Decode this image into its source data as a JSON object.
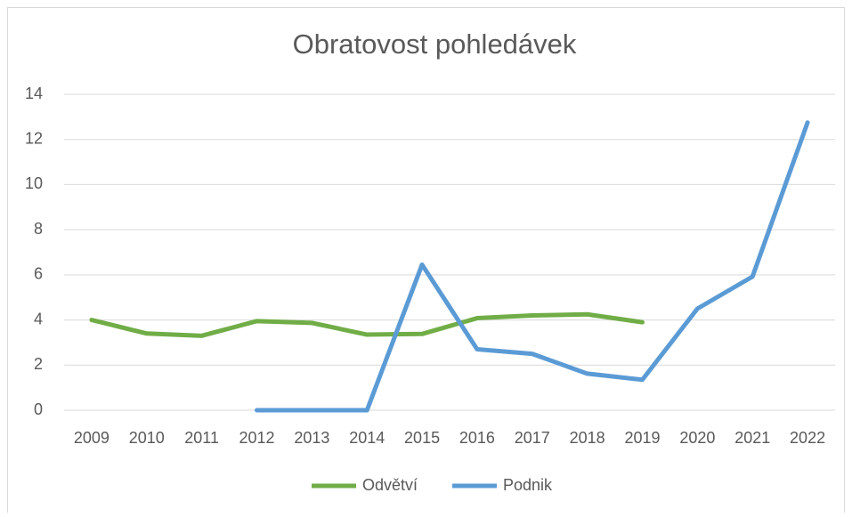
{
  "chart_data": {
    "type": "line",
    "title": "Obratovost pohledávek",
    "categories": [
      "2009",
      "2010",
      "2011",
      "2012",
      "2013",
      "2014",
      "2015",
      "2016",
      "2017",
      "2018",
      "2019",
      "2020",
      "2021",
      "2022"
    ],
    "series": [
      {
        "name": "Odvětví",
        "color": "#70ad47",
        "values": [
          4.0,
          3.4,
          3.3,
          3.95,
          3.87,
          3.35,
          3.38,
          4.08,
          4.2,
          4.25,
          3.9,
          null,
          null,
          null
        ]
      },
      {
        "name": "Podnik",
        "color": "#5b9bd5",
        "values": [
          null,
          null,
          null,
          0,
          0,
          0,
          6.45,
          2.7,
          2.5,
          1.62,
          1.35,
          4.5,
          5.92,
          12.75
        ]
      }
    ],
    "ylim": [
      0,
      14
    ],
    "yticks": [
      0,
      2,
      4,
      6,
      8,
      10,
      12,
      14
    ],
    "grid": true,
    "legend": "bottom"
  }
}
